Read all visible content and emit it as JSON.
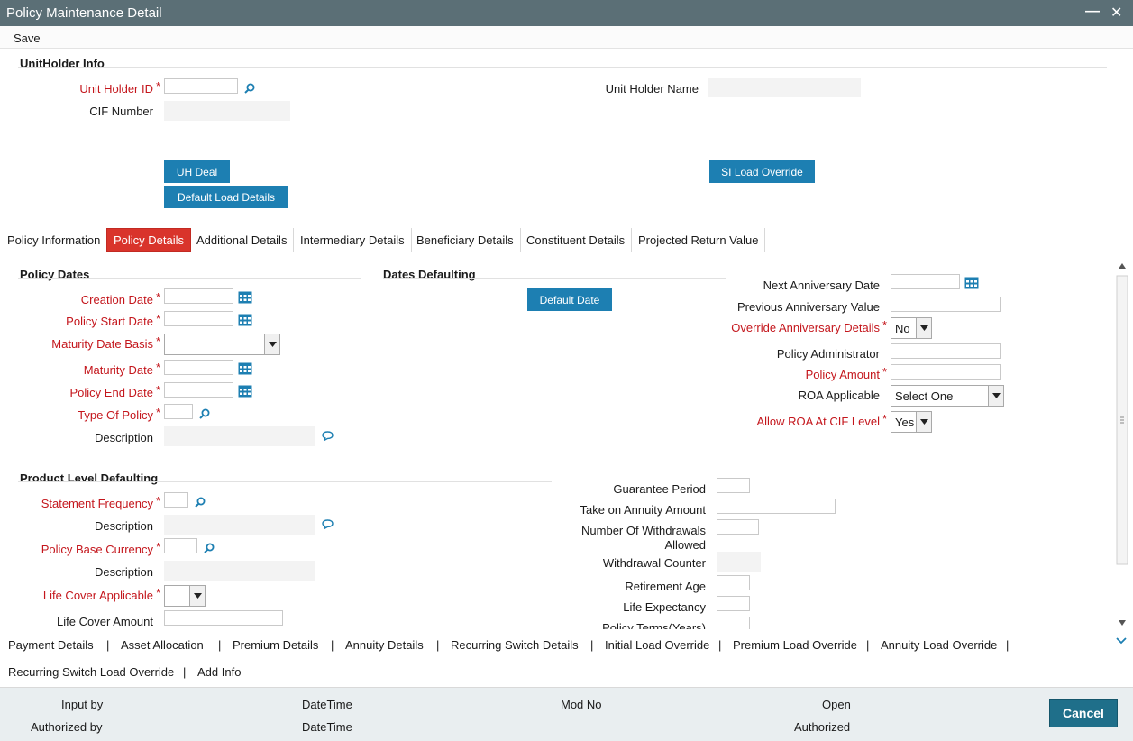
{
  "window": {
    "title": "Policy Maintenance Detail",
    "minimize": "—",
    "close": "✕"
  },
  "menu": {
    "save": "Save"
  },
  "unitholder": {
    "section": "UnitHolder Info",
    "id_label": "Unit Holder ID",
    "cif_label": "CIF Number",
    "name_label": "Unit Holder Name",
    "uh_deal": "UH Deal",
    "default_load": "Default Load Details",
    "si_load": "SI Load Override"
  },
  "tabs": [
    "Policy Information",
    "Policy Details",
    "Additional Details",
    "Intermediary Details",
    "Beneficiary Details",
    "Constituent Details",
    "Projected Return Value"
  ],
  "policy_dates": {
    "section": "Policy Dates",
    "creation": "Creation Date",
    "start": "Policy Start Date",
    "maturity_basis": "Maturity Date Basis",
    "maturity": "Maturity Date",
    "end": "Policy End Date",
    "type": "Type Of Policy",
    "description": "Description"
  },
  "dates_defaulting": {
    "section": "Dates Defaulting",
    "default_date": "Default Date"
  },
  "right": {
    "next_anniv": "Next Anniversary Date",
    "prev_anniv": "Previous Anniversary Value",
    "override_anniv": "Override Anniversary Details",
    "override_value": "No",
    "administrator": "Policy Administrator",
    "amount": "Policy Amount",
    "roa": "ROA Applicable",
    "roa_value": "Select One",
    "allow_roa": "Allow ROA At CIF Level",
    "allow_roa_value": "Yes"
  },
  "product": {
    "section": "Product Level Defaulting",
    "stmt_freq": "Statement Frequency",
    "description": "Description",
    "base_ccy": "Policy Base Currency",
    "description2": "Description",
    "life_cover": "Life Cover Applicable",
    "life_cover_amt": "Life Cover Amount"
  },
  "guarantee": {
    "period": "Guarantee Period",
    "take_on": "Take on Annuity Amount",
    "num_withdrawals_1": "Number Of Withdrawals",
    "num_withdrawals_2": "Allowed",
    "withdrawal_counter": "Withdrawal Counter",
    "retirement_age": "Retirement Age",
    "life_expectancy": "Life Expectancy",
    "policy_terms": "Policy Terms(Years)"
  },
  "bottom_links": [
    "Payment Details",
    "Asset Allocation",
    "Premium Details",
    "Annuity Details",
    "Recurring Switch Details",
    "Initial Load Override",
    "Premium Load Override",
    "Annuity Load Override",
    "Recurring Switch Load Override",
    "Add Info"
  ],
  "separator": "|",
  "footer": {
    "input_by": "Input by",
    "authorized_by": "Authorized by",
    "datetime1": "DateTime",
    "datetime2": "DateTime",
    "mod_no": "Mod No",
    "open": "Open",
    "authorized": "Authorized",
    "cancel": "Cancel"
  },
  "colors": {
    "titlebar": "#5b6f76",
    "button": "#1d7fb2",
    "active_tab": "#d9342b",
    "required": "#c4161c",
    "footer": "#e9eef0"
  }
}
